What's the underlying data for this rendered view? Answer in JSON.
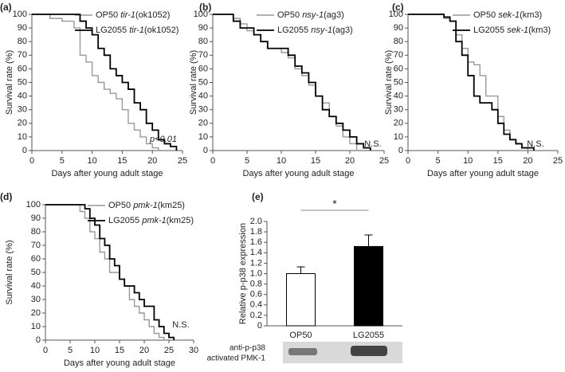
{
  "chart_data": [
    {
      "type": "line",
      "panel": "(a)",
      "xlabel": "Days after young adult stage",
      "ylabel": "Survival rate (%)",
      "annotation": "p<0.01",
      "xlim": [
        0,
        25
      ],
      "xticks": [
        0,
        5,
        10,
        15,
        20,
        25
      ],
      "ylim": [
        0,
        100
      ],
      "yticks": [
        0,
        10,
        20,
        30,
        40,
        50,
        60,
        70,
        80,
        90,
        100
      ],
      "series": [
        {
          "name": "OP50 tir-1(ok1052)",
          "color": "#999999",
          "x": [
            0,
            3,
            5,
            7,
            8,
            9,
            10,
            11,
            12,
            13,
            14,
            15,
            16,
            17,
            18,
            19,
            20,
            21
          ],
          "values": [
            100,
            97,
            95,
            90,
            70,
            65,
            55,
            50,
            45,
            42,
            38,
            30,
            20,
            15,
            10,
            5,
            2,
            0
          ]
        },
        {
          "name": "LG2055 tir-1(ok1052)",
          "color": "#000000",
          "x": [
            0,
            8,
            9,
            10,
            11,
            12,
            13,
            14,
            15,
            16,
            17,
            18,
            19,
            20,
            21,
            22,
            23,
            24
          ],
          "values": [
            100,
            95,
            90,
            85,
            75,
            70,
            60,
            55,
            50,
            45,
            35,
            30,
            20,
            15,
            8,
            5,
            3,
            0
          ]
        }
      ]
    },
    {
      "type": "line",
      "panel": "(b)",
      "xlabel": "Days after young adult stage",
      "ylabel": "Survival rate (%)",
      "annotation": "N.S.",
      "xlim": [
        0,
        25
      ],
      "xticks": [
        0,
        5,
        10,
        15,
        20,
        25
      ],
      "ylim": [
        0,
        100
      ],
      "yticks": [
        0,
        10,
        20,
        30,
        40,
        50,
        60,
        70,
        80,
        90,
        100
      ],
      "series": [
        {
          "name": "OP50 nsy-1(ag3)",
          "color": "#999999",
          "x": [
            0,
            3,
            4,
            5,
            6,
            7,
            8,
            10,
            11,
            12,
            13,
            14,
            15,
            16,
            17,
            18,
            19,
            20,
            21
          ],
          "values": [
            100,
            97,
            93,
            88,
            85,
            80,
            75,
            72,
            68,
            60,
            55,
            48,
            40,
            35,
            25,
            18,
            10,
            5,
            0
          ]
        },
        {
          "name": "LG2055 nsy-1(ag3)",
          "color": "#000000",
          "x": [
            0,
            3,
            4,
            6,
            7,
            8,
            11,
            12,
            13,
            14,
            15,
            16,
            17,
            18,
            19,
            20,
            21,
            22,
            23
          ],
          "values": [
            100,
            95,
            90,
            85,
            80,
            75,
            70,
            62,
            57,
            50,
            40,
            30,
            25,
            20,
            15,
            10,
            5,
            2,
            0
          ]
        }
      ]
    },
    {
      "type": "line",
      "panel": "(c)",
      "xlabel": "Days after young adult stage",
      "ylabel": "Survival rate (%)",
      "annotation": "N.S.",
      "xlim": [
        0,
        25
      ],
      "xticks": [
        0,
        5,
        10,
        15,
        20,
        25
      ],
      "ylim": [
        0,
        100
      ],
      "yticks": [
        0,
        10,
        20,
        30,
        40,
        50,
        60,
        70,
        80,
        90,
        100
      ],
      "series": [
        {
          "name": "OP50 sek-1(km3)",
          "color": "#999999",
          "x": [
            0,
            6,
            7,
            8,
            9,
            10,
            11,
            12,
            13,
            15,
            16,
            17,
            18,
            19,
            20
          ],
          "values": [
            100,
            97,
            95,
            85,
            75,
            65,
            63,
            55,
            40,
            25,
            15,
            8,
            5,
            2,
            0
          ]
        },
        {
          "name": "LG2055 sek-1(km3)",
          "color": "#000000",
          "x": [
            0,
            6,
            7,
            8,
            9,
            10,
            11,
            12,
            14,
            15,
            16,
            17,
            18,
            19,
            21
          ],
          "values": [
            100,
            98,
            95,
            80,
            70,
            55,
            40,
            35,
            30,
            20,
            12,
            8,
            5,
            2,
            0
          ]
        }
      ]
    },
    {
      "type": "line",
      "panel": "(d)",
      "xlabel": "Days after young adult stage",
      "ylabel": "Survival rate (%)",
      "annotation": "N.S.",
      "xlim": [
        0,
        30
      ],
      "xticks": [
        0,
        5,
        10,
        15,
        20,
        25,
        30
      ],
      "ylim": [
        0,
        100
      ],
      "yticks": [
        0,
        10,
        20,
        30,
        40,
        50,
        60,
        70,
        80,
        90,
        100
      ],
      "series": [
        {
          "name": "OP50 pmk-1(km25)",
          "color": "#999999",
          "x": [
            0,
            7,
            8,
            9,
            10,
            11,
            12,
            13,
            15,
            16,
            17,
            18,
            19,
            20,
            21,
            22,
            23,
            24
          ],
          "values": [
            100,
            95,
            90,
            80,
            75,
            65,
            60,
            50,
            45,
            40,
            30,
            25,
            20,
            15,
            10,
            5,
            2,
            0
          ]
        },
        {
          "name": "LG2055 pmk-1(km25)",
          "color": "#000000",
          "x": [
            0,
            8,
            9,
            10,
            11,
            12,
            13,
            14,
            15,
            16,
            18,
            19,
            20,
            22,
            23,
            24,
            25,
            26
          ],
          "values": [
            100,
            97,
            90,
            85,
            75,
            70,
            60,
            55,
            45,
            40,
            35,
            30,
            25,
            15,
            10,
            5,
            2,
            0
          ]
        }
      ]
    },
    {
      "type": "bar",
      "panel": "(e)",
      "ylabel": "Relative p-p38 expression",
      "significance": "*",
      "categories": [
        "OP50",
        "LG2055"
      ],
      "values": [
        1.0,
        1.52
      ],
      "errors": [
        0.13,
        0.22
      ],
      "colors": [
        "#ffffff",
        "#000000"
      ],
      "ylim": [
        0,
        2
      ],
      "yticks": [
        0,
        0.2,
        0.4,
        0.6,
        0.8,
        {
          "value": 1,
          "label": "1.0"
        },
        1.2,
        1.4,
        1.6,
        1.8,
        {
          "value": 2,
          "label": "2.0"
        }
      ],
      "blot_labels": [
        "anti-p-p38",
        "activated PMK-1"
      ]
    }
  ]
}
